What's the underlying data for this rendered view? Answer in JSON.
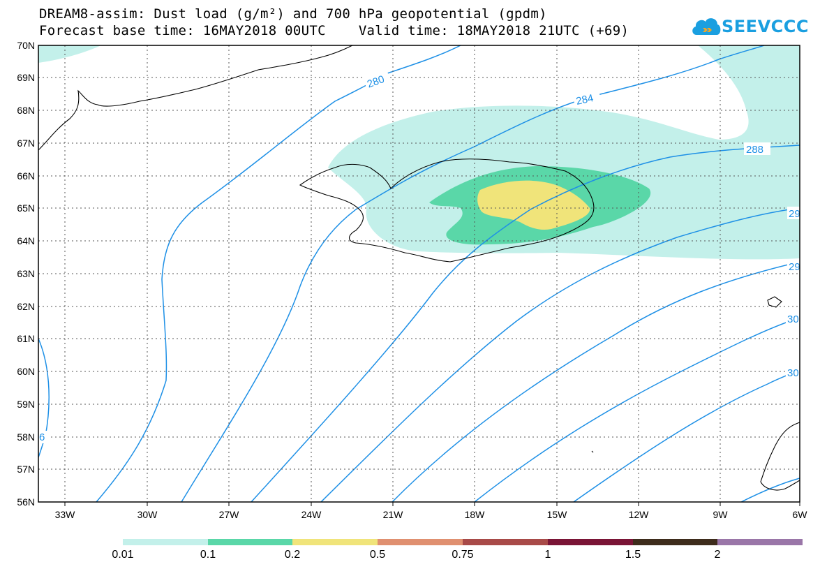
{
  "header": {
    "title_line1": "DREAM8-assim: Dust load (g/m²) and 700 hPa geopotential (gpdm)",
    "title_line2": "Forecast base time: 16MAY2018 00UTC    Valid time: 18MAY2018 21UTC (+69)",
    "logo_text": "SEEVCCC"
  },
  "map": {
    "lat_labels": [
      "70N",
      "69N",
      "68N",
      "67N",
      "66N",
      "65N",
      "64N",
      "63N",
      "62N",
      "61N",
      "60N",
      "59N",
      "58N",
      "57N",
      "56N"
    ],
    "lon_labels": [
      "33W",
      "30W",
      "27W",
      "24W",
      "21W",
      "18W",
      "15W",
      "12W",
      "9W",
      "6W"
    ],
    "contour_labels": [
      "280",
      "284",
      "288",
      "29",
      "29",
      "30",
      "30",
      "6"
    ],
    "colors": {
      "dust_0_01": "#c3f0ea",
      "dust_0_1": "#5ad7a8",
      "dust_0_2": "#f0e47a",
      "contour": "#1e90e6"
    }
  },
  "colorbar": {
    "labels": [
      "0.01",
      "0.1",
      "0.2",
      "0.5",
      "0.75",
      "1",
      "1.5",
      "2"
    ],
    "colors": [
      "#c3f0ea",
      "#5ad7a8",
      "#f0e47a",
      "#e09070",
      "#a84a48",
      "#7a1436",
      "#3e2c1c",
      "#9a76a8"
    ]
  }
}
